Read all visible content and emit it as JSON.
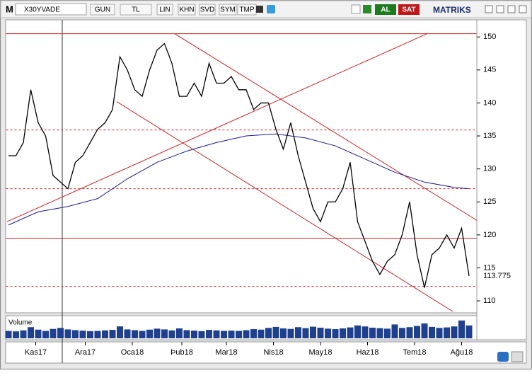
{
  "toolbar": {
    "logo": "M",
    "symbol": "X30YVADE",
    "buttons": [
      "GUN",
      "TL",
      "LIN",
      "KHN",
      "SVD",
      "SYM",
      "TMP"
    ],
    "buy": "AL",
    "sell": "SAT",
    "brand": "MATRIKS"
  },
  "chart_data": {
    "type": "line",
    "series": [
      {
        "name": "X30YVADE",
        "color": "#000000",
        "x": [
          0,
          3,
          6,
          9,
          12,
          15,
          18,
          21,
          24,
          27,
          30,
          33,
          36,
          39,
          42,
          45,
          48,
          51,
          54,
          57,
          60,
          63,
          66,
          69,
          72,
          75,
          78,
          81,
          84,
          87,
          90,
          93,
          96,
          99,
          102,
          105,
          108,
          111,
          114,
          117,
          120,
          123,
          126,
          129,
          132,
          135,
          138,
          141,
          144,
          147,
          150,
          153,
          156,
          159,
          162,
          165,
          168,
          171,
          174,
          177,
          180,
          183,
          186
        ],
        "values": [
          132,
          132,
          134,
          142,
          137,
          135,
          129,
          128,
          127,
          131,
          132,
          134,
          136,
          137,
          139,
          147,
          145,
          142,
          141,
          145,
          148,
          149,
          146,
          141,
          141,
          143,
          141,
          146,
          143,
          143,
          144,
          142,
          142,
          139,
          140,
          140,
          136,
          133,
          137,
          132,
          128,
          124,
          122,
          125,
          125,
          127,
          131,
          122,
          119,
          116,
          114,
          116,
          117,
          120,
          125,
          117,
          112,
          117,
          118,
          120,
          118,
          121,
          113.775
        ]
      },
      {
        "color": "#1a1a8c",
        "x": [
          0,
          12,
          24,
          36,
          48,
          60,
          72,
          84,
          96,
          108,
          120,
          132,
          144,
          156,
          168,
          180,
          186
        ],
        "values": [
          121.5,
          123.5,
          124.3,
          125.5,
          128.5,
          131,
          132.7,
          134,
          135,
          135.3,
          134.7,
          133.5,
          131.5,
          129.5,
          128,
          127.2,
          127
        ]
      }
    ],
    "hlines": [
      {
        "value": 150.5,
        "style": "solid"
      },
      {
        "value": 135.9,
        "style": "dashed"
      },
      {
        "value": 127,
        "style": "dashed"
      },
      {
        "value": 119.5,
        "style": "solid"
      },
      {
        "value": 112.2,
        "style": "dashed"
      }
    ],
    "trendlines": [
      {
        "x": [
          -0.6,
          169.1
        ],
        "y": [
          122.0,
          150.5
        ]
      },
      {
        "x": [
          67.1,
          190.9
        ],
        "y": [
          150.5,
          121.8
        ]
      },
      {
        "x": [
          43.7,
          179.4
        ],
        "y": [
          140.2,
          108.4
        ]
      }
    ],
    "line_color": "#cc2222",
    "xlim": [
      -1,
      189
    ],
    "ylim": [
      108.4,
      152.6
    ],
    "yticks": [
      110,
      115,
      120,
      125,
      130,
      135,
      140,
      145,
      150
    ],
    "xticks": [
      {
        "value": 11,
        "label": "Kas17"
      },
      {
        "value": 31,
        "label": "Ara17"
      },
      {
        "value": 50,
        "label": "Oca18"
      },
      {
        "value": 70,
        "label": "Þub18"
      },
      {
        "value": 88,
        "label": "Mar18"
      },
      {
        "value": 107,
        "label": "Nis18"
      },
      {
        "value": 126,
        "label": "May18"
      },
      {
        "value": 145,
        "label": "Haz18"
      },
      {
        "value": 164,
        "label": "Tem18"
      },
      {
        "value": 183,
        "label": "Ağu18"
      }
    ],
    "grid": false,
    "volume": {
      "title": "Volume",
      "color": "#1f3f8f",
      "ylim": [
        0,
        8000000
      ],
      "values": [
        3000000,
        2800000,
        3200000,
        4500000,
        3500000,
        3000000,
        3800000,
        4200000,
        3600000,
        3300000,
        3100000,
        2900000,
        3000000,
        3200000,
        3400000,
        4800000,
        3600000,
        3300000,
        3000000,
        3500000,
        3900000,
        3600000,
        3200000,
        4000000,
        3300000,
        3100000,
        2900000,
        3400000,
        3200000,
        3000000,
        3100000,
        3000000,
        3300000,
        3700000,
        3500000,
        4200000,
        4600000,
        4000000,
        3800000,
        4500000,
        4100000,
        4700000,
        4300000,
        3900000,
        3700000,
        4000000,
        4400000,
        5200000,
        4800000,
        4300000,
        4100000,
        3900000,
        5600000,
        4200000,
        4500000,
        5000000,
        6000000,
        4600000,
        4200000,
        4400000,
        4800000,
        7200000,
        5200000
      ]
    }
  }
}
